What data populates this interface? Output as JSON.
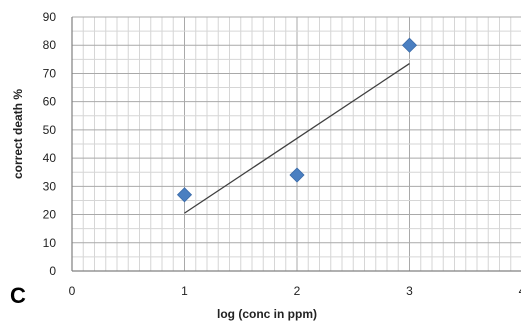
{
  "chart_data": {
    "type": "scatter",
    "panel_label": "C",
    "xlabel": "log (conc in ppm)",
    "ylabel": "correct death %",
    "xlim": [
      0,
      4
    ],
    "ylim": [
      0,
      90
    ],
    "x_ticks": [
      0,
      1,
      2,
      3,
      4
    ],
    "y_ticks": [
      0,
      10,
      20,
      30,
      40,
      50,
      60,
      70,
      80,
      90
    ],
    "grid": true,
    "legend": "none",
    "series": [
      {
        "points": [
          {
            "x": 1,
            "y": 27
          },
          {
            "x": 2,
            "y": 34
          },
          {
            "x": 3,
            "y": 80
          }
        ],
        "marker": "diamond",
        "color": "#4a7fc1"
      }
    ],
    "trendline": {
      "type": "linear",
      "x_start": 1,
      "x_end": 3,
      "color": "#404040"
    },
    "colors": {
      "grid_minor": "#d6d6d6",
      "grid_major": "#a9a9a9",
      "axis": "#808080"
    }
  }
}
